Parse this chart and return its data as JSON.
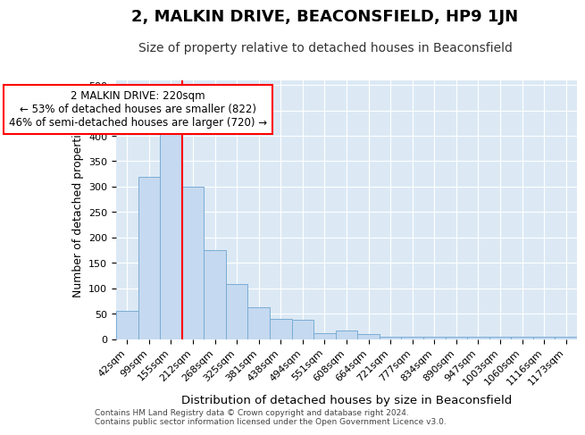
{
  "title": "2, MALKIN DRIVE, BEACONSFIELD, HP9 1JN",
  "subtitle": "Size of property relative to detached houses in Beaconsfield",
  "xlabel": "Distribution of detached houses by size in Beaconsfield",
  "ylabel": "Number of detached properties",
  "categories": [
    "42sqm",
    "99sqm",
    "155sqm",
    "212sqm",
    "268sqm",
    "325sqm",
    "381sqm",
    "438sqm",
    "494sqm",
    "551sqm",
    "608sqm",
    "664sqm",
    "721sqm",
    "777sqm",
    "834sqm",
    "890sqm",
    "947sqm",
    "1003sqm",
    "1060sqm",
    "1116sqm",
    "1173sqm"
  ],
  "values": [
    55,
    320,
    405,
    300,
    175,
    108,
    63,
    40,
    37,
    12,
    17,
    9,
    5,
    5,
    5,
    5,
    5,
    5,
    5,
    5,
    5
  ],
  "bar_color": "#c5d9f0",
  "bar_edge_color": "#7aadd4",
  "vline_x": 2.5,
  "vline_color": "red",
  "annotation_text": "2 MALKIN DRIVE: 220sqm\n← 53% of detached houses are smaller (822)\n46% of semi-detached houses are larger (720) →",
  "annotation_box_color": "white",
  "annotation_box_edge": "red",
  "ylim": [
    0,
    510
  ],
  "yticks": [
    0,
    50,
    100,
    150,
    200,
    250,
    300,
    350,
    400,
    450,
    500
  ],
  "background_color": "#dce9f5",
  "grid_color": "white",
  "footer_line1": "Contains HM Land Registry data © Crown copyright and database right 2024.",
  "footer_line2": "Contains public sector information licensed under the Open Government Licence v3.0.",
  "title_fontsize": 13,
  "subtitle_fontsize": 10,
  "ylabel_fontsize": 9,
  "xlabel_fontsize": 9.5,
  "tick_fontsize": 8,
  "annotation_fontsize": 8.5,
  "footer_fontsize": 6.5
}
